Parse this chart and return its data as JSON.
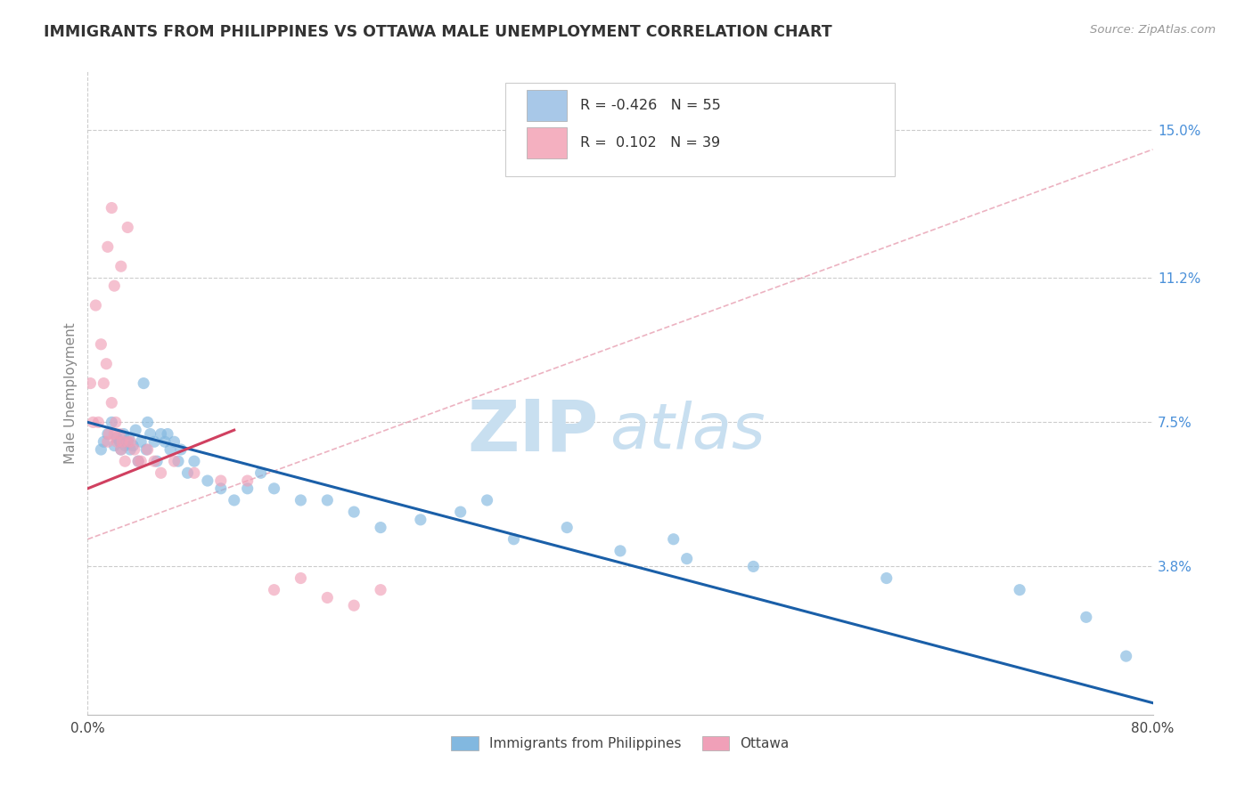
{
  "title": "IMMIGRANTS FROM PHILIPPINES VS OTTAWA MALE UNEMPLOYMENT CORRELATION CHART",
  "source_text": "Source: ZipAtlas.com",
  "ylabel": "Male Unemployment",
  "xlim": [
    0.0,
    80.0
  ],
  "ylim": [
    0.0,
    16.5
  ],
  "yticks": [
    3.8,
    7.5,
    11.2,
    15.0
  ],
  "xtick_labels": [
    "0.0%",
    "80.0%"
  ],
  "ytick_labels": [
    "3.8%",
    "7.5%",
    "11.2%",
    "15.0%"
  ],
  "legend_label_1": "R = -0.426   N = 55",
  "legend_label_2": "R =  0.102   N = 39",
  "legend_color_1": "#a8c8e8",
  "legend_color_2": "#f4b0c0",
  "blue_scatter_color": "#82b8e0",
  "blue_scatter_alpha": 0.65,
  "blue_scatter_x": [
    1.0,
    1.2,
    1.5,
    1.8,
    2.0,
    2.2,
    2.4,
    2.5,
    2.7,
    2.8,
    3.0,
    3.1,
    3.2,
    3.4,
    3.6,
    3.8,
    4.0,
    4.2,
    4.4,
    4.5,
    4.7,
    5.0,
    5.2,
    5.5,
    5.8,
    6.0,
    6.2,
    6.5,
    6.8,
    7.0,
    7.5,
    8.0,
    9.0,
    10.0,
    11.0,
    12.0,
    13.0,
    14.0,
    16.0,
    18.0,
    20.0,
    22.0,
    25.0,
    28.0,
    32.0,
    36.0,
    40.0,
    44.0,
    50.0,
    60.0,
    70.0,
    75.0,
    78.0,
    45.0,
    30.0
  ],
  "blue_scatter_y": [
    6.8,
    7.0,
    7.2,
    7.5,
    6.9,
    7.1,
    7.0,
    6.8,
    7.2,
    6.9,
    7.0,
    7.1,
    6.8,
    6.9,
    7.3,
    6.5,
    7.0,
    8.5,
    6.8,
    7.5,
    7.2,
    7.0,
    6.5,
    7.2,
    7.0,
    7.2,
    6.8,
    7.0,
    6.5,
    6.8,
    6.2,
    6.5,
    6.0,
    5.8,
    5.5,
    5.8,
    6.2,
    5.8,
    5.5,
    5.5,
    5.2,
    4.8,
    5.0,
    5.2,
    4.5,
    4.8,
    4.2,
    4.5,
    3.8,
    3.5,
    3.2,
    2.5,
    1.5,
    4.0,
    5.5
  ],
  "pink_scatter_color": "#f0a0b8",
  "pink_scatter_alpha": 0.65,
  "pink_scatter_x": [
    0.2,
    0.4,
    0.6,
    0.8,
    1.0,
    1.2,
    1.4,
    1.5,
    1.6,
    1.8,
    2.0,
    2.1,
    2.2,
    2.4,
    2.5,
    2.6,
    2.8,
    3.0,
    3.2,
    3.5,
    3.8,
    4.0,
    4.5,
    5.0,
    5.5,
    6.5,
    8.0,
    10.0,
    12.0,
    14.0,
    16.0,
    18.0,
    20.0,
    22.0,
    3.0,
    1.5,
    2.5,
    2.0,
    1.8
  ],
  "pink_scatter_y": [
    8.5,
    7.5,
    10.5,
    7.5,
    9.5,
    8.5,
    9.0,
    7.0,
    7.2,
    8.0,
    7.2,
    7.5,
    7.0,
    7.2,
    6.8,
    7.0,
    6.5,
    7.0,
    7.0,
    6.8,
    6.5,
    6.5,
    6.8,
    6.5,
    6.2,
    6.5,
    6.2,
    6.0,
    6.0,
    3.2,
    3.5,
    3.0,
    2.8,
    3.2,
    12.5,
    12.0,
    11.5,
    11.0,
    13.0
  ],
  "blue_line_color": "#1a5fa8",
  "blue_line_x": [
    0.0,
    80.0
  ],
  "blue_line_y": [
    7.5,
    0.3
  ],
  "pink_line_color": "#d04060",
  "pink_line_x": [
    0.0,
    11.0
  ],
  "pink_line_y": [
    5.8,
    7.3
  ],
  "pink_dashed_line_color": "#e08098",
  "pink_dashed_line_x": [
    0.0,
    80.0
  ],
  "pink_dashed_line_y": [
    4.5,
    14.5
  ],
  "watermark_zip": "ZIP",
  "watermark_atlas": "atlas",
  "watermark_color": "#c8dff0",
  "background_color": "#ffffff",
  "grid_color": "#cccccc",
  "title_color": "#333333",
  "axis_label_color": "#888888",
  "right_axis_color": "#4a90d9",
  "figsize": [
    14.06,
    8.92
  ],
  "dpi": 100
}
